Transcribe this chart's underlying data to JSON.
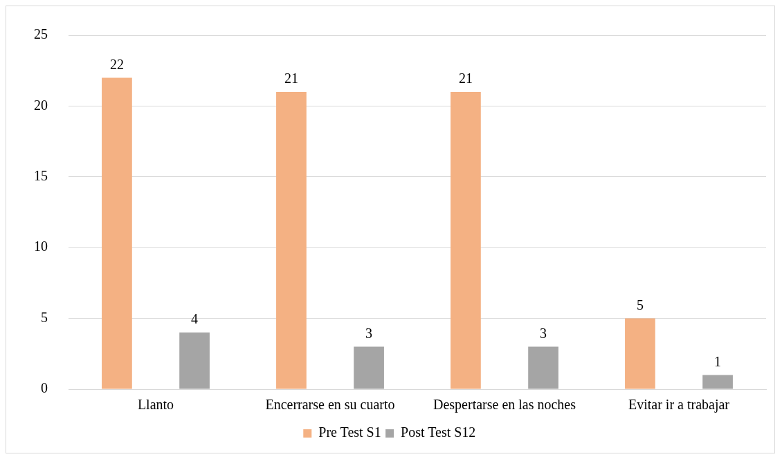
{
  "chart_data": {
    "type": "bar",
    "categories": [
      "Llanto",
      "Encerrarse en su cuarto",
      "Despertarse en las noches",
      "Evitar ir a trabajar"
    ],
    "series": [
      {
        "name": "Pre Test S1",
        "color": "#f4b183",
        "values": [
          22,
          21,
          21,
          5
        ]
      },
      {
        "name": "Post Test S12",
        "color": "#a5a5a5",
        "values": [
          4,
          3,
          3,
          1
        ]
      }
    ],
    "ylim": [
      0,
      25
    ],
    "yticks": [
      0,
      5,
      10,
      15,
      20,
      25
    ],
    "grid": "y",
    "legend": "bottom",
    "data_labels": true
  }
}
